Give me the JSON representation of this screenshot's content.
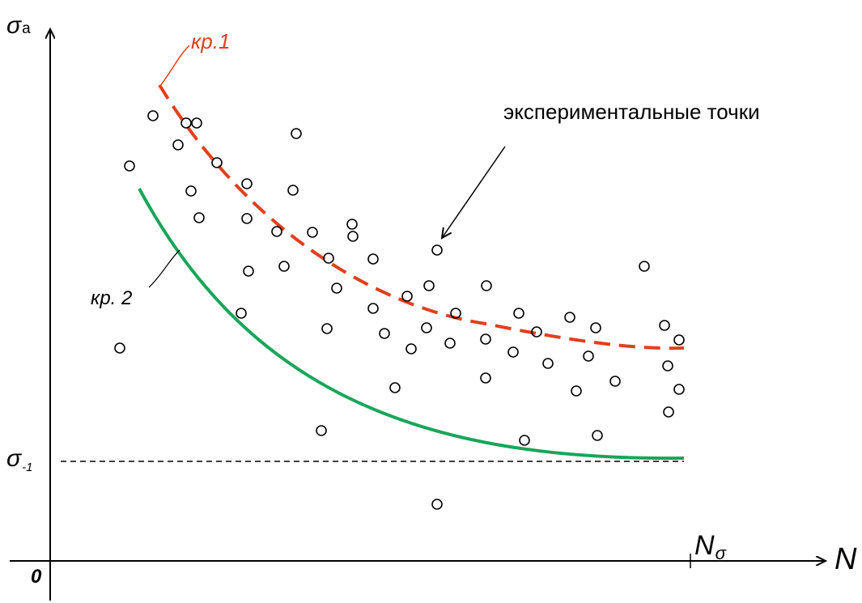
{
  "labels": {
    "y_axis": "σ",
    "y_axis_sub": "a",
    "x_axis": "N",
    "origin": "0",
    "endurance": "σ",
    "endurance_sub": "-1",
    "n_sigma": "N",
    "n_sigma_sub": "σ",
    "curve1": "кр.1",
    "curve2": "кр. 2",
    "points_note": "экспериментальные точки"
  },
  "colors": {
    "axis": "#000000",
    "curve1": "#e0401c",
    "curve2": "#1aa55a",
    "points": "#000000"
  }
}
